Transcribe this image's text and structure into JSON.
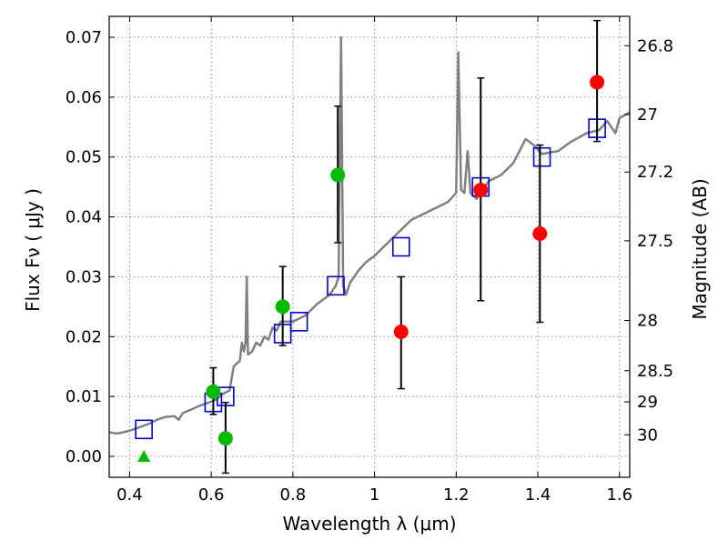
{
  "chart_data": {
    "type": "scatter",
    "xlabel": "Wavelength  λ (μm)",
    "ylabel_left": "Flux  Fν  ( μJy )",
    "ylabel_right": "Magnitude (AB)",
    "xlim": [
      0.35,
      1.625
    ],
    "ylim": [
      -0.0035,
      0.0735
    ],
    "grid": true,
    "x_ticks": [
      {
        "value": 0.4,
        "label": "0.4"
      },
      {
        "value": 0.6,
        "label": "0.6"
      },
      {
        "value": 0.8,
        "label": "0.8"
      },
      {
        "value": 1.0,
        "label": "1"
      },
      {
        "value": 1.2,
        "label": "1.2"
      },
      {
        "value": 1.4,
        "label": "1.4"
      },
      {
        "value": 1.6,
        "label": "1.6"
      }
    ],
    "y_ticks": [
      {
        "value": 0.0,
        "label": "0.00"
      },
      {
        "value": 0.01,
        "label": "0.01"
      },
      {
        "value": 0.02,
        "label": "0.02"
      },
      {
        "value": 0.03,
        "label": "0.03"
      },
      {
        "value": 0.04,
        "label": "0.04"
      },
      {
        "value": 0.05,
        "label": "0.05"
      },
      {
        "value": 0.06,
        "label": "0.06"
      },
      {
        "value": 0.07,
        "label": "0.07"
      }
    ],
    "right_ticks": [
      {
        "label": "26.8",
        "flux": 0.0686
      },
      {
        "label": "27",
        "flux": 0.0571
      },
      {
        "label": "27.2",
        "flux": 0.0475
      },
      {
        "label": "27.5",
        "flux": 0.036
      },
      {
        "label": "28",
        "flux": 0.0227
      },
      {
        "label": "28.5",
        "flux": 0.0143
      },
      {
        "label": "29",
        "flux": 0.0091
      },
      {
        "label": "30",
        "flux": 0.0036
      }
    ],
    "colors": {
      "sed": "#808080",
      "model": "#0000cc",
      "optical": "#00bb00",
      "nir": "#ff0000",
      "errorbar": "#000000",
      "grid": "#8a8a8a"
    },
    "series": [
      {
        "type": "line",
        "points": [
          [
            0.35,
            0.004
          ],
          [
            0.37,
            0.0038
          ],
          [
            0.39,
            0.0041
          ],
          [
            0.41,
            0.0045
          ],
          [
            0.43,
            0.005
          ],
          [
            0.45,
            0.0055
          ],
          [
            0.47,
            0.0062
          ],
          [
            0.49,
            0.0066
          ],
          [
            0.51,
            0.0067
          ],
          [
            0.52,
            0.0061
          ],
          [
            0.53,
            0.0072
          ],
          [
            0.55,
            0.0078
          ],
          [
            0.57,
            0.0084
          ],
          [
            0.59,
            0.0089
          ],
          [
            0.61,
            0.0094
          ],
          [
            0.63,
            0.0105
          ],
          [
            0.645,
            0.011
          ],
          [
            0.655,
            0.015
          ],
          [
            0.67,
            0.016
          ],
          [
            0.675,
            0.019
          ],
          [
            0.68,
            0.0175
          ],
          [
            0.684,
            0.019
          ],
          [
            0.687,
            0.03
          ],
          [
            0.69,
            0.017
          ],
          [
            0.7,
            0.0175
          ],
          [
            0.71,
            0.019
          ],
          [
            0.72,
            0.0185
          ],
          [
            0.73,
            0.02
          ],
          [
            0.74,
            0.0195
          ],
          [
            0.75,
            0.0215
          ],
          [
            0.76,
            0.021
          ],
          [
            0.77,
            0.0225
          ],
          [
            0.8,
            0.0225
          ],
          [
            0.83,
            0.0235
          ],
          [
            0.86,
            0.0255
          ],
          [
            0.89,
            0.027
          ],
          [
            0.905,
            0.0285
          ],
          [
            0.912,
            0.03
          ],
          [
            0.918,
            0.07
          ],
          [
            0.923,
            0.0285
          ],
          [
            0.93,
            0.027
          ],
          [
            0.94,
            0.029
          ],
          [
            0.95,
            0.03
          ],
          [
            0.96,
            0.031
          ],
          [
            0.98,
            0.0325
          ],
          [
            1.0,
            0.0335
          ],
          [
            1.03,
            0.0355
          ],
          [
            1.06,
            0.0375
          ],
          [
            1.09,
            0.0395
          ],
          [
            1.12,
            0.0405
          ],
          [
            1.15,
            0.0415
          ],
          [
            1.18,
            0.0425
          ],
          [
            1.2,
            0.044
          ],
          [
            1.205,
            0.0675
          ],
          [
            1.212,
            0.0445
          ],
          [
            1.22,
            0.044
          ],
          [
            1.228,
            0.051
          ],
          [
            1.235,
            0.044
          ],
          [
            1.25,
            0.043
          ],
          [
            1.28,
            0.046
          ],
          [
            1.31,
            0.047
          ],
          [
            1.34,
            0.049
          ],
          [
            1.37,
            0.053
          ],
          [
            1.39,
            0.052
          ],
          [
            1.41,
            0.0505
          ],
          [
            1.45,
            0.051
          ],
          [
            1.48,
            0.0525
          ],
          [
            1.52,
            0.054
          ],
          [
            1.55,
            0.0545
          ],
          [
            1.57,
            0.056
          ],
          [
            1.59,
            0.054
          ],
          [
            1.6,
            0.0565
          ],
          [
            1.625,
            0.0575
          ]
        ]
      },
      {
        "type": "squares",
        "points": [
          [
            0.435,
            0.0045
          ],
          [
            0.605,
            0.009
          ],
          [
            0.635,
            0.01
          ],
          [
            0.775,
            0.0205
          ],
          [
            0.815,
            0.0225
          ],
          [
            0.905,
            0.0285
          ],
          [
            1.065,
            0.035
          ],
          [
            1.26,
            0.045
          ],
          [
            1.41,
            0.05
          ],
          [
            1.545,
            0.0548
          ]
        ]
      },
      {
        "type": "green-circles",
        "points": [
          {
            "x": 0.605,
            "y": 0.0108,
            "lo": 0.007,
            "hi": 0.0148
          },
          {
            "x": 0.635,
            "y": 0.003,
            "lo": -0.0028,
            "hi": 0.009
          },
          {
            "x": 0.775,
            "y": 0.025,
            "lo": 0.0185,
            "hi": 0.0317
          },
          {
            "x": 0.91,
            "y": 0.047,
            "lo": 0.0357,
            "hi": 0.0585
          }
        ]
      },
      {
        "type": "green-triangle",
        "points": [
          [
            0.435,
            0.0
          ]
        ]
      },
      {
        "type": "red-circles",
        "points": [
          {
            "x": 1.065,
            "y": 0.0208,
            "lo": 0.0113,
            "hi": 0.03
          },
          {
            "x": 1.26,
            "y": 0.0445,
            "lo": 0.026,
            "hi": 0.0632
          },
          {
            "x": 1.405,
            "y": 0.0372,
            "lo": 0.0224,
            "hi": 0.052
          },
          {
            "x": 1.545,
            "y": 0.0625,
            "lo": 0.0526,
            "hi": 0.0728
          }
        ]
      }
    ]
  }
}
